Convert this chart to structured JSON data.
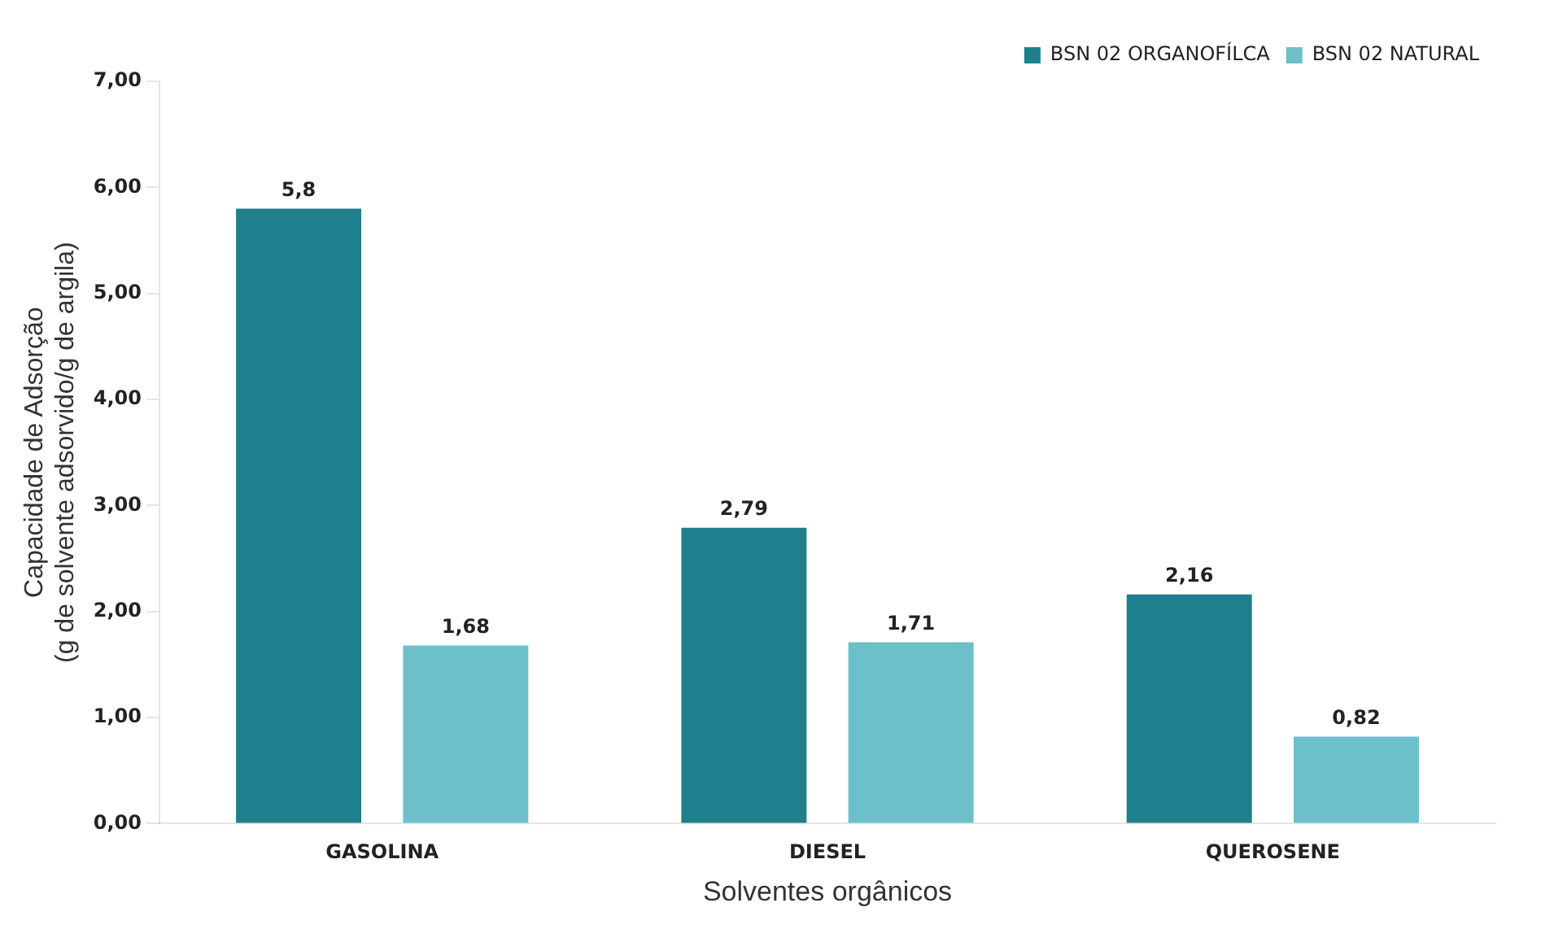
{
  "chart_data": {
    "type": "bar",
    "xlabel": "Solventes orgânicos",
    "ylabel": "Capacidade de Adsorção\n(g de solvente adsorvido/g de argila)",
    "categories": [
      "GASOLINA",
      "DIESEL",
      "QUEROSENE"
    ],
    "series": [
      {
        "name": "BSN 02 ORGANOFÍLCA",
        "color": "#1f7f8c",
        "values": [
          5.8,
          2.79,
          2.16
        ],
        "value_labels": [
          "5,8",
          "2,79",
          "2,16"
        ]
      },
      {
        "name": "BSN 02 NATURAL",
        "color": "#6cc0c9",
        "values": [
          1.68,
          1.71,
          0.82
        ],
        "value_labels": [
          "1,68",
          "1,71",
          "0,82"
        ]
      }
    ],
    "ylim": [
      0,
      7
    ],
    "yticks": [
      {
        "value": 0,
        "label": "0,00"
      },
      {
        "value": 1,
        "label": "1,00"
      },
      {
        "value": 2,
        "label": "2,00"
      },
      {
        "value": 3,
        "label": "3,00"
      },
      {
        "value": 4,
        "label": "4,00"
      },
      {
        "value": 5,
        "label": "5,00"
      },
      {
        "value": 6,
        "label": "6,00"
      },
      {
        "value": 7,
        "label": "7,00"
      }
    ],
    "grid": false,
    "legend": "top right"
  }
}
